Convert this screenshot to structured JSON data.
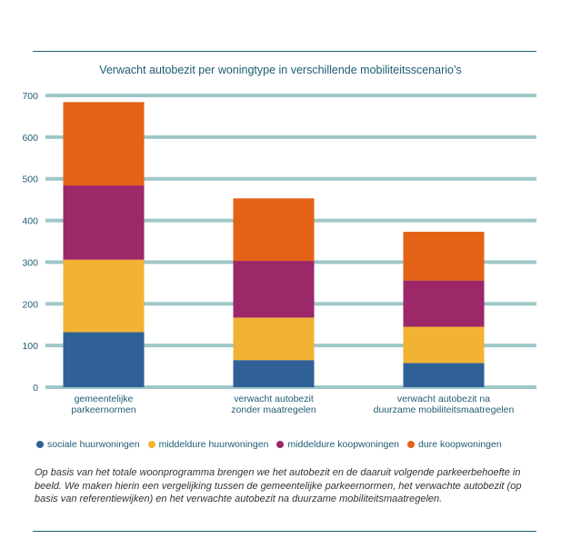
{
  "chart_data": {
    "type": "bar",
    "stacked": true,
    "title": "Verwacht autobezit per woningtype in verschillende mobiliteitsscenario’s",
    "categories": [
      [
        "gemeentelijke",
        "parkeernormen"
      ],
      [
        "verwacht autobezit",
        "zonder maatregelen"
      ],
      [
        "verwacht  autobezit na",
        "duurzame mobiliteitsmaatregelen"
      ]
    ],
    "series": [
      {
        "name": "sociale huurwoningen",
        "color": "#2f6196",
        "values": [
          132,
          65,
          58
        ]
      },
      {
        "name": "middeldure huurwoningen",
        "color": "#f2b233",
        "values": [
          174,
          102,
          87
        ]
      },
      {
        "name": "middeldure koopwoningen",
        "color": "#9c2769",
        "values": [
          178,
          136,
          111
        ]
      },
      {
        "name": "dure koopwoningen",
        "color": "#e46215",
        "values": [
          200,
          150,
          117
        ]
      }
    ],
    "yticks": [
      0,
      100,
      200,
      300,
      400,
      500,
      600,
      700
    ],
    "ylim": [
      0,
      700
    ],
    "xlabel": "",
    "ylabel": "",
    "gridline_color": "#9fc7c8",
    "legend_position": "bottom"
  },
  "caption": "Op basis van het totale woonprogramma brengen we het autobezit en de daaruit volgende parkeerbehoefte in beeld. We maken hierin een vergelijking tussen de gemeentelijke parkeernormen, het verwachte autobezit (op basis van referentiewijken) en het verwachte autobezit na duurzame mobiliteitsmaatregelen."
}
